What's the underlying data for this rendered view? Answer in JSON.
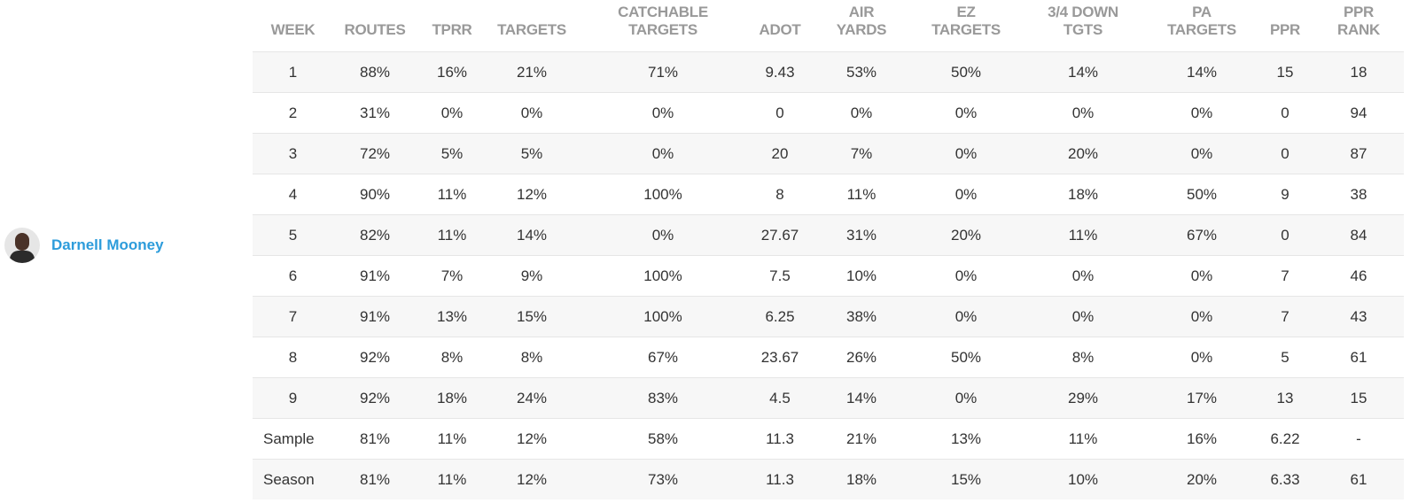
{
  "player": {
    "name": "Darnell Mooney"
  },
  "table": {
    "headers": [
      [
        "WEEK"
      ],
      [
        "ROUTES"
      ],
      [
        "TPRR"
      ],
      [
        "TARGETS"
      ],
      [
        "CATCHABLE",
        "TARGETS"
      ],
      [
        "ADOT"
      ],
      [
        "AIR",
        "YARDS"
      ],
      [
        "EZ",
        "TARGETS"
      ],
      [
        "3/4 DOWN",
        "TGTS"
      ],
      [
        "PA",
        "TARGETS"
      ],
      [
        "PPR"
      ],
      [
        "PPR",
        "RANK"
      ]
    ],
    "rows": [
      [
        "1",
        "88%",
        "16%",
        "21%",
        "71%",
        "9.43",
        "53%",
        "50%",
        "14%",
        "14%",
        "15",
        "18"
      ],
      [
        "2",
        "31%",
        "0%",
        "0%",
        "0%",
        "0",
        "0%",
        "0%",
        "0%",
        "0%",
        "0",
        "94"
      ],
      [
        "3",
        "72%",
        "5%",
        "5%",
        "0%",
        "20",
        "7%",
        "0%",
        "20%",
        "0%",
        "0",
        "87"
      ],
      [
        "4",
        "90%",
        "11%",
        "12%",
        "100%",
        "8",
        "11%",
        "0%",
        "18%",
        "50%",
        "9",
        "38"
      ],
      [
        "5",
        "82%",
        "11%",
        "14%",
        "0%",
        "27.67",
        "31%",
        "20%",
        "11%",
        "67%",
        "0",
        "84"
      ],
      [
        "6",
        "91%",
        "7%",
        "9%",
        "100%",
        "7.5",
        "10%",
        "0%",
        "0%",
        "0%",
        "7",
        "46"
      ],
      [
        "7",
        "91%",
        "13%",
        "15%",
        "100%",
        "6.25",
        "38%",
        "0%",
        "0%",
        "0%",
        "7",
        "43"
      ],
      [
        "8",
        "92%",
        "8%",
        "8%",
        "67%",
        "23.67",
        "26%",
        "50%",
        "8%",
        "0%",
        "5",
        "61"
      ],
      [
        "9",
        "92%",
        "18%",
        "24%",
        "83%",
        "4.5",
        "14%",
        "0%",
        "29%",
        "17%",
        "13",
        "15"
      ],
      [
        "Sample",
        "81%",
        "11%",
        "12%",
        "58%",
        "11.3",
        "21%",
        "13%",
        "11%",
        "16%",
        "6.22",
        "-"
      ],
      [
        "Season",
        "81%",
        "11%",
        "12%",
        "73%",
        "11.3",
        "18%",
        "15%",
        "10%",
        "20%",
        "6.33",
        "61"
      ]
    ]
  }
}
